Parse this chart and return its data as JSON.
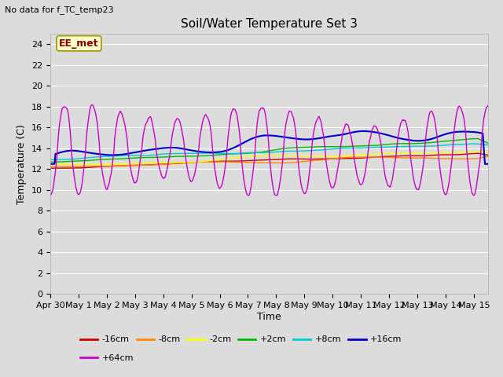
{
  "title": "Soil/Water Temperature Set 3",
  "subtitle": "No data for f_TC_temp23",
  "ylabel": "Temperature (C)",
  "xlabel": "Time",
  "annotation": "EE_met",
  "ylim": [
    0,
    25
  ],
  "yticks": [
    0,
    2,
    4,
    6,
    8,
    10,
    12,
    14,
    16,
    18,
    20,
    22,
    24
  ],
  "bg_color": "#dcdcdc",
  "plot_bg": "#dcdcdc",
  "legend_items": [
    {
      "label": "-16cm",
      "color": "#cc0000"
    },
    {
      "label": "-8cm",
      "color": "#ff8800"
    },
    {
      "label": "-2cm",
      "color": "#ffff00"
    },
    {
      "label": "+2cm",
      "color": "#00bb00"
    },
    {
      "label": "+8cm",
      "color": "#00cccc"
    },
    {
      "label": "+16cm",
      "color": "#0000cc"
    },
    {
      "label": "+64cm",
      "color": "#cc00cc"
    }
  ],
  "xtick_labels": [
    "Apr 30",
    "May 1",
    "May 2",
    "May 3",
    "May 4",
    "May 5",
    "May 6",
    "May 7",
    "May 8",
    "May 9",
    "May 10",
    "May 11",
    "May 12",
    "May 13",
    "May 14",
    "May 15"
  ],
  "num_days": 15.5,
  "n_points": 600
}
